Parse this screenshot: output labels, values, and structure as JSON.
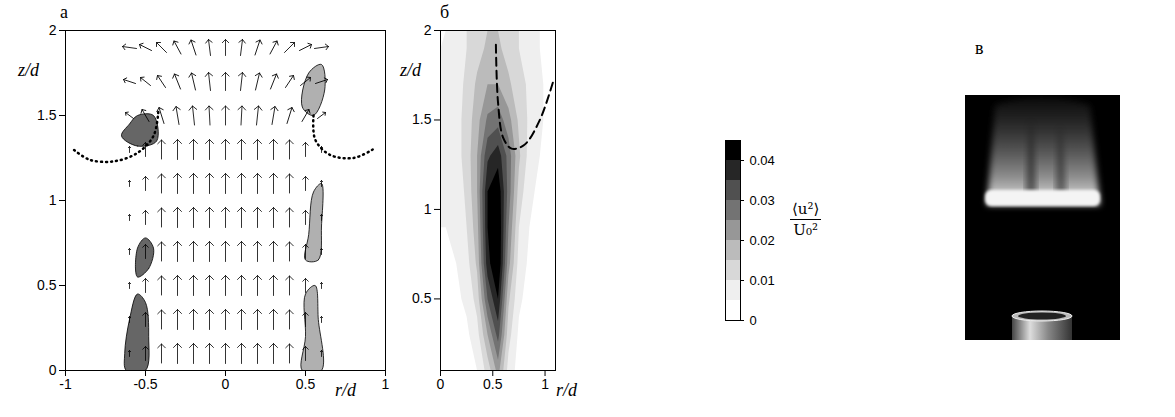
{
  "chart_data": [
    {
      "type": "vector_field",
      "label": "а",
      "x_label": "r/d",
      "y_label": "z/d",
      "xlim": [
        -1,
        1
      ],
      "xticks": [
        -1,
        -0.5,
        0,
        0.5,
        1
      ],
      "ylim": [
        0,
        2
      ],
      "yticks": [
        0,
        0.5,
        1,
        1.5,
        2
      ],
      "vectors": {
        "r": [
          -0.6,
          -0.5,
          -0.4,
          -0.3,
          -0.2,
          -0.1,
          0,
          0.1,
          0.2,
          0.3,
          0.4,
          0.5,
          0.6
        ],
        "z": [
          0.1,
          0.3,
          0.5,
          0.7,
          0.9,
          1.1,
          1.3,
          1.5,
          1.7,
          1.9
        ],
        "u": [
          [
            0,
            0,
            0,
            0,
            0,
            0,
            0,
            0,
            0,
            0,
            0,
            0,
            0
          ],
          [
            0,
            0,
            0,
            0,
            0,
            0,
            0,
            0,
            0,
            0,
            0,
            0,
            0
          ],
          [
            0,
            0,
            0,
            0,
            0,
            0,
            0,
            0,
            0,
            0,
            0,
            0,
            0
          ],
          [
            0,
            0,
            0,
            0,
            0,
            0,
            0,
            0,
            0,
            0,
            0,
            0,
            0
          ],
          [
            0,
            0,
            0,
            0,
            0,
            0,
            0,
            0,
            0,
            0,
            0,
            0,
            0
          ],
          [
            0,
            0,
            0,
            0,
            0,
            0,
            0,
            0,
            0,
            0,
            0,
            0,
            0
          ],
          [
            0,
            0,
            0,
            0,
            0,
            0,
            0,
            0,
            0,
            0,
            0,
            0,
            0
          ],
          [
            -0.4,
            -0.35,
            -0.25,
            -0.15,
            -0.1,
            -0.05,
            0,
            0.05,
            0.1,
            0.15,
            0.25,
            0.35,
            0.4
          ],
          [
            -0.6,
            -0.5,
            -0.4,
            -0.3,
            -0.2,
            -0.1,
            0,
            0.1,
            0.2,
            0.3,
            0.4,
            0.5,
            0.6
          ],
          [
            -0.7,
            -0.6,
            -0.5,
            -0.35,
            -0.25,
            -0.1,
            0,
            0.1,
            0.25,
            0.35,
            0.5,
            0.6,
            0.7
          ]
        ],
        "w": [
          [
            0.3,
            0.7,
            0.95,
            1,
            1,
            1,
            1,
            1,
            1,
            1,
            0.95,
            0.7,
            0.3
          ],
          [
            0.3,
            0.7,
            0.95,
            1,
            1,
            1,
            1,
            1,
            1,
            1,
            0.95,
            0.7,
            0.3
          ],
          [
            0.3,
            0.7,
            0.95,
            1,
            1,
            1,
            1,
            1,
            1,
            1,
            0.95,
            0.7,
            0.3
          ],
          [
            0.3,
            0.7,
            0.95,
            1,
            1,
            1,
            1,
            1,
            1,
            1,
            0.95,
            0.7,
            0.3
          ],
          [
            0.3,
            0.7,
            0.95,
            1,
            1,
            1,
            1,
            1,
            1,
            1,
            0.95,
            0.7,
            0.3
          ],
          [
            0.3,
            0.7,
            0.95,
            1,
            1,
            1,
            1,
            1,
            1,
            1,
            0.95,
            0.7,
            0.3
          ],
          [
            0.3,
            0.7,
            0.95,
            1,
            1,
            1,
            1,
            1,
            1,
            1,
            0.95,
            0.7,
            0.3
          ],
          [
            0.3,
            0.6,
            0.8,
            0.9,
            0.95,
            0.95,
            0.95,
            0.95,
            0.95,
            0.9,
            0.8,
            0.6,
            0.3
          ],
          [
            0.2,
            0.4,
            0.6,
            0.75,
            0.85,
            0.9,
            0.9,
            0.9,
            0.85,
            0.75,
            0.6,
            0.4,
            0.2
          ],
          [
            0.1,
            0.3,
            0.5,
            0.65,
            0.75,
            0.8,
            0.8,
            0.8,
            0.75,
            0.65,
            0.5,
            0.3,
            0.1
          ]
        ]
      },
      "regions": [
        {
          "color": "#666666",
          "points": [
            [
              -0.62,
              0
            ],
            [
              -0.5,
              0
            ],
            [
              -0.48,
              0.2
            ],
            [
              -0.5,
              0.4
            ],
            [
              -0.55,
              0.45
            ],
            [
              -0.6,
              0.3
            ],
            [
              -0.63,
              0.1
            ]
          ]
        },
        {
          "color": "#666666",
          "points": [
            [
              -0.55,
              0.55
            ],
            [
              -0.48,
              0.6
            ],
            [
              -0.45,
              0.72
            ],
            [
              -0.5,
              0.78
            ],
            [
              -0.55,
              0.72
            ]
          ]
        },
        {
          "color": "#666666",
          "points": [
            [
              -0.65,
              1.38
            ],
            [
              -0.55,
              1.32
            ],
            [
              -0.43,
              1.35
            ],
            [
              -0.45,
              1.5
            ],
            [
              -0.55,
              1.5
            ],
            [
              -0.6,
              1.45
            ]
          ]
        },
        {
          "color": "#b0b0b0",
          "points": [
            [
              0.48,
              0
            ],
            [
              0.6,
              0
            ],
            [
              0.58,
              0.3
            ],
            [
              0.56,
              0.5
            ],
            [
              0.5,
              0.45
            ],
            [
              0.5,
              0.2
            ]
          ]
        },
        {
          "color": "#b0b0b0",
          "points": [
            [
              0.5,
              0.65
            ],
            [
              0.58,
              0.65
            ],
            [
              0.6,
              0.85
            ],
            [
              0.6,
              1.1
            ],
            [
              0.55,
              1.05
            ],
            [
              0.52,
              0.8
            ]
          ]
        },
        {
          "color": "#b0b0b0",
          "points": [
            [
              0.48,
              1.55
            ],
            [
              0.55,
              1.5
            ],
            [
              0.62,
              1.65
            ],
            [
              0.6,
              1.8
            ],
            [
              0.52,
              1.75
            ]
          ]
        }
      ],
      "fronts": [
        {
          "line_style": "dotted",
          "points": [
            [
              -0.42,
              1.52
            ],
            [
              -0.45,
              1.38
            ],
            [
              -0.55,
              1.28
            ],
            [
              -0.7,
              1.23
            ],
            [
              -0.85,
              1.24
            ],
            [
              -0.95,
              1.3
            ]
          ]
        },
        {
          "line_style": "dotted",
          "points": [
            [
              0.55,
              1.5
            ],
            [
              0.56,
              1.36
            ],
            [
              0.65,
              1.27
            ],
            [
              0.8,
              1.25
            ],
            [
              0.92,
              1.3
            ]
          ]
        }
      ]
    },
    {
      "type": "contour",
      "label": "б",
      "x_label": "r/d",
      "y_label": "z/d",
      "xlim": [
        0,
        1.1
      ],
      "xticks": [
        0,
        0.5,
        1
      ],
      "ylim": [
        0.1,
        2
      ],
      "yticks": [
        0.5,
        1,
        1.5,
        2
      ],
      "cells": {
        "r": [
          0.05,
          0.15,
          0.25,
          0.35,
          0.45,
          0.55,
          0.65,
          0.75,
          0.85,
          0.95,
          1.05
        ],
        "z": [
          0.1,
          0.3,
          0.5,
          0.7,
          0.9,
          1.1,
          1.3,
          1.5,
          1.7,
          1.9
        ],
        "values": [
          [
            0.002,
            0.002,
            0.003,
            0.005,
            0.012,
            0.022,
            0.008,
            0.003,
            0.001,
            0,
            0
          ],
          [
            0.003,
            0.003,
            0.004,
            0.008,
            0.02,
            0.032,
            0.012,
            0.004,
            0.002,
            0.001,
            0
          ],
          [
            0.004,
            0.004,
            0.006,
            0.012,
            0.03,
            0.04,
            0.016,
            0.006,
            0.003,
            0.001,
            0
          ],
          [
            0.004,
            0.005,
            0.008,
            0.016,
            0.038,
            0.046,
            0.022,
            0.008,
            0.004,
            0.002,
            0.001
          ],
          [
            0.005,
            0.006,
            0.01,
            0.018,
            0.04,
            0.046,
            0.025,
            0.01,
            0.005,
            0.003,
            0.001
          ],
          [
            0.006,
            0.007,
            0.011,
            0.02,
            0.04,
            0.044,
            0.028,
            0.013,
            0.006,
            0.004,
            0.002
          ],
          [
            0.007,
            0.008,
            0.012,
            0.02,
            0.034,
            0.038,
            0.028,
            0.016,
            0.008,
            0.005,
            0.002
          ],
          [
            0.007,
            0.008,
            0.012,
            0.018,
            0.026,
            0.028,
            0.022,
            0.014,
            0.009,
            0.006,
            0.003
          ],
          [
            0.007,
            0.008,
            0.011,
            0.016,
            0.02,
            0.02,
            0.016,
            0.012,
            0.009,
            0.006,
            0.003
          ],
          [
            0.006,
            0.007,
            0.01,
            0.013,
            0.016,
            0.016,
            0.013,
            0.01,
            0.008,
            0.005,
            0.003
          ]
        ]
      },
      "colorbar": {
        "range": [
          0,
          0.045
        ],
        "ticks": [
          0,
          0.01,
          0.02,
          0.03,
          0.04
        ],
        "levels": [
          0,
          0.005,
          0.01,
          0.015,
          0.02,
          0.025,
          0.03,
          0.035,
          0.04,
          0.045
        ],
        "label": {
          "numerator": "⟨u²⟩",
          "denominator": "U₀²"
        }
      },
      "fronts": [
        {
          "line_style": "dashed",
          "points": [
            [
              0.53,
              1.92
            ],
            [
              0.55,
              1.6
            ],
            [
              0.6,
              1.4
            ],
            [
              0.68,
              1.34
            ],
            [
              0.8,
              1.36
            ],
            [
              0.95,
              1.5
            ],
            [
              1.08,
              1.72
            ]
          ]
        }
      ]
    },
    {
      "type": "image",
      "label": "в"
    }
  ]
}
